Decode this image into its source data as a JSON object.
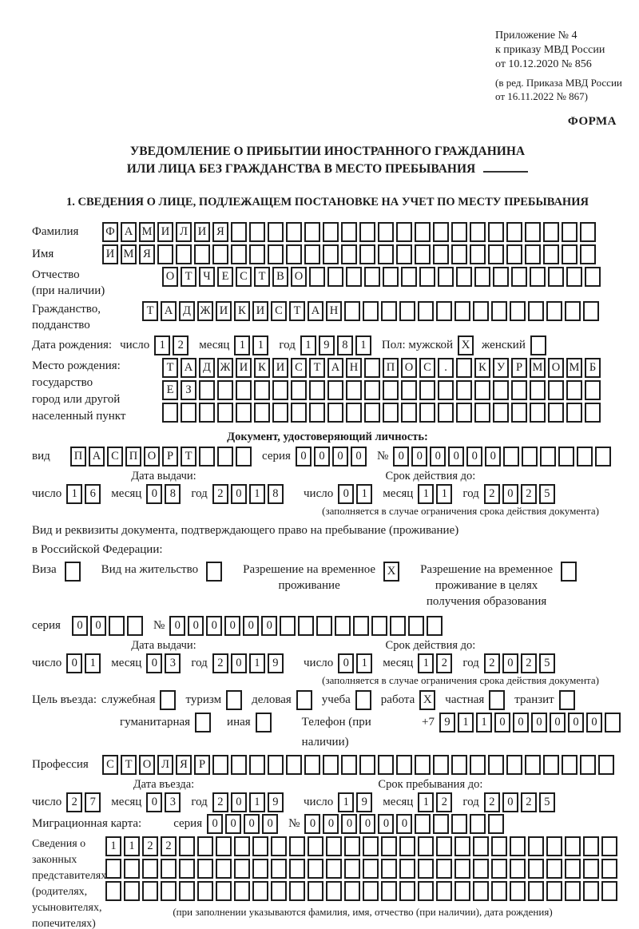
{
  "page": {
    "annex_lines": [
      "Приложение № 4",
      "к приказу МВД России",
      "от 10.12.2020 № 856"
    ],
    "amend_lines": [
      "(в ред. Приказа МВД России",
      "от 16.11.2022 № 867)"
    ],
    "form_label": "ФОРМА",
    "title_line1": "УВЕДОМЛЕНИЕ О ПРИБЫТИИ ИНОСТРАННОГО ГРАЖДАНИНА",
    "title_line2": "ИЛИ ЛИЦА БЕЗ ГРАЖДАНСТВА В МЕСТО ПРЕБЫВАНИЯ",
    "section1_heading": "1. СВЕДЕНИЯ О ЛИЦЕ, ПОДЛЕЖАЩЕМ ПОСТАНОВКЕ НА УЧЕТ ПО МЕСТУ ПРЕБЫВАНИЯ"
  },
  "date_labels": {
    "day": "число",
    "month": "месяц",
    "year": "год"
  },
  "person": {
    "surname_label": "Фамилия",
    "surname": {
      "text": "ФАМИЛИЯ",
      "boxes": 27
    },
    "name_label": "Имя",
    "name": {
      "text": "ИМЯ",
      "boxes": 27
    },
    "patronymic_label1": "Отчество",
    "patronymic_label2": "(при наличии)",
    "patronymic": {
      "text": "ОТЧЕСТВО",
      "boxes": 24
    },
    "citizenship_label1": "Гражданство,",
    "citizenship_label2": "подданство",
    "citizenship": {
      "text": "ТАДЖИКИСТАН",
      "boxes": 25
    },
    "birth_date_label": "Дата рождения:",
    "birth_day": {
      "text": "12",
      "boxes": 2
    },
    "birth_month": {
      "text": "11",
      "boxes": 2
    },
    "birth_year": {
      "text": "1981",
      "boxes": 4
    },
    "sex_label": "Пол: мужской",
    "sex_male_mark": "X",
    "sex_female_label": "женский",
    "sex_female_mark": "",
    "birth_place_labels": [
      "Место рождения:",
      "государство",
      "город или другой",
      "населенный пункт"
    ],
    "birth_place_row1": {
      "text": "ТАДЖИКИСТАН ПОС. КУРМОМБ",
      "boxes": 24
    },
    "birth_place_row2": {
      "text": "ЕЗ",
      "boxes": 24
    },
    "birth_place_row3": {
      "text": "",
      "boxes": 24
    }
  },
  "identity_doc": {
    "heading": "Документ, удостоверяющий личность:",
    "kind_label": "вид",
    "kind": {
      "text": "ПАСПОРТ",
      "boxes": 10
    },
    "series_label": "серия",
    "series": {
      "text": "0000",
      "boxes": 4
    },
    "number_label": "№",
    "number": {
      "text": "000000",
      "boxes": 12
    },
    "issue_title": "Дата выдачи:",
    "issue_day": {
      "text": "16",
      "boxes": 2
    },
    "issue_month": {
      "text": "08",
      "boxes": 2
    },
    "issue_year": {
      "text": "2018",
      "boxes": 4
    },
    "expiry_title": "Срок действия до:",
    "expiry_day": {
      "text": "01",
      "boxes": 2
    },
    "expiry_month": {
      "text": "11",
      "boxes": 2
    },
    "expiry_year": {
      "text": "2025",
      "boxes": 4
    },
    "expiry_note": "(заполняется в случае ограничения срока действия документа)"
  },
  "residence_doc": {
    "intro_line1": "Вид и реквизиты документа, подтверждающего право на пребывание (проживание)",
    "intro_line2": "в Российской Федерации:",
    "options": [
      {
        "label": "Виза",
        "mark": ""
      },
      {
        "label": "Вид на жительство",
        "mark": ""
      },
      {
        "label": "Разрешение на временное\nпроживание",
        "mark": "X"
      },
      {
        "label": "Разрешение на временное\nпроживание в целях\nполучения образования",
        "mark": ""
      }
    ],
    "series_label": "серия",
    "series": {
      "text": "00",
      "boxes": 4
    },
    "number_label": "№",
    "number": {
      "text": "000000",
      "boxes": 15
    },
    "issue_title": "Дата выдачи:",
    "issue_day": {
      "text": "01",
      "boxes": 2
    },
    "issue_month": {
      "text": "03",
      "boxes": 2
    },
    "issue_year": {
      "text": "2019",
      "boxes": 4
    },
    "expiry_title": "Срок действия до:",
    "expiry_day": {
      "text": "01",
      "boxes": 2
    },
    "expiry_month": {
      "text": "12",
      "boxes": 2
    },
    "expiry_year": {
      "text": "2025",
      "boxes": 4
    },
    "expiry_note": "(заполняется в случае ограничения срока действия документа)"
  },
  "visit": {
    "purpose_label": "Цель въезда:",
    "purpose_row1": [
      {
        "label": "служебная",
        "mark": ""
      },
      {
        "label": "туризм",
        "mark": ""
      },
      {
        "label": "деловая",
        "mark": ""
      },
      {
        "label": "учеба",
        "mark": ""
      },
      {
        "label": "работа",
        "mark": "X"
      },
      {
        "label": "частная",
        "mark": ""
      },
      {
        "label": "транзит",
        "mark": ""
      }
    ],
    "purpose_row2": [
      {
        "label": "гуманитарная",
        "mark": ""
      },
      {
        "label": "иная",
        "mark": ""
      }
    ],
    "phone_label": "Телефон (при наличии)",
    "phone_prefix": "+7",
    "phone": {
      "text": "911000000",
      "boxes": 10
    },
    "profession_label": "Профессия",
    "profession": {
      "text": "СТОЛЯР",
      "boxes": 28
    },
    "entry_title": "Дата въезда:",
    "entry_day": {
      "text": "27",
      "boxes": 2
    },
    "entry_month": {
      "text": "03",
      "boxes": 2
    },
    "entry_year": {
      "text": "2019",
      "boxes": 4
    },
    "stay_title": "Срок пребывания до:",
    "stay_day": {
      "text": "19",
      "boxes": 2
    },
    "stay_month": {
      "text": "12",
      "boxes": 2
    },
    "stay_year": {
      "text": "2025",
      "boxes": 4
    }
  },
  "migration_card": {
    "label": "Миграционная карта:",
    "series_label": "серия",
    "series": {
      "text": "0000",
      "boxes": 4
    },
    "number_label": "№",
    "number": {
      "text": "000000",
      "boxes": 11
    }
  },
  "representatives": {
    "labels": [
      "Сведения о",
      "законных",
      "представителях",
      "(родителях,",
      "усыновителях,",
      "попечителях)"
    ],
    "row1": {
      "text": "1122",
      "boxes": 28
    },
    "row2": {
      "text": "",
      "boxes": 28
    },
    "row3": {
      "text": "",
      "boxes": 28
    },
    "note": "(при заполнении указываются фамилия, имя, отчество (при наличии), дата рождения)"
  }
}
